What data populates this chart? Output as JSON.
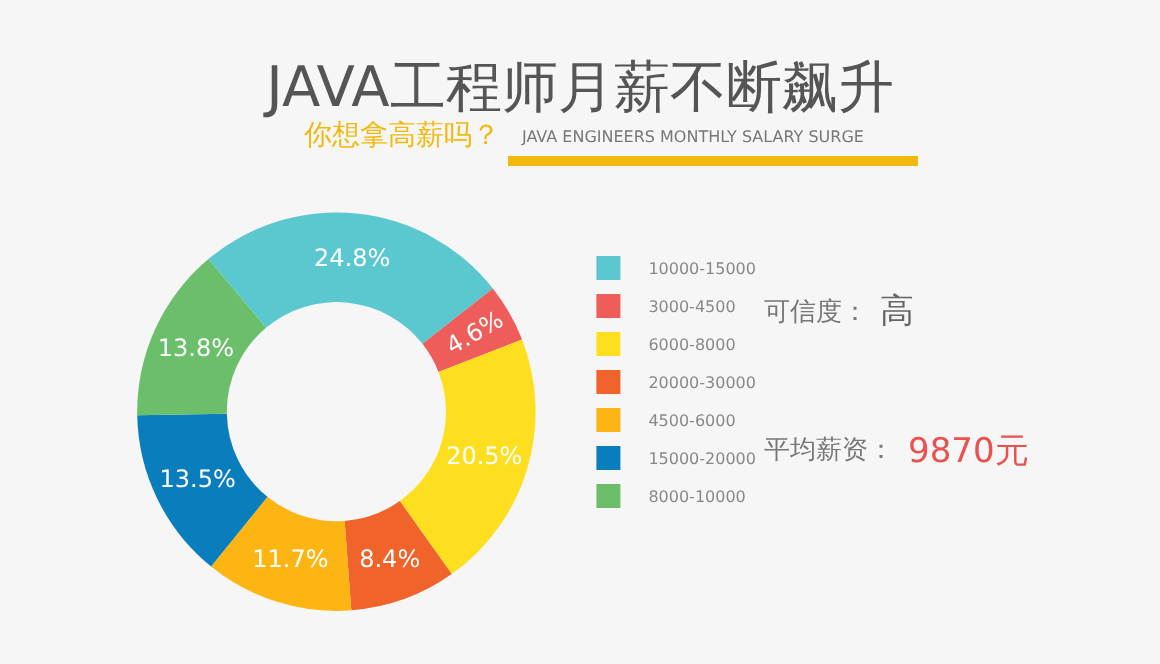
{
  "chart_data": {
    "type": "donut",
    "title": "JAVA工程师月薪不断飙升",
    "subtitle": "你想拿高薪吗？",
    "categories": [
      "10000-15000",
      "3000-4500",
      "6000-8000",
      "20000-30000",
      "4500-6000",
      "15000-20000",
      "8000-10000"
    ],
    "values": [
      24.8,
      4.6,
      20.5,
      8.4,
      11.7,
      13.5,
      13.8
    ],
    "value_labels": [
      "24.8%",
      "4.6%",
      "20.5%",
      "8.4%",
      "11.7%",
      "13.5%",
      "13.8%"
    ],
    "colors": [
      "#5bc8d0",
      "#ee5d5a",
      "#fddf1f",
      "#f0632a",
      "#fdb514",
      "#0a7dbd",
      "#6bbf6a"
    ],
    "legend": "right",
    "annotations": [
      "JAVA ENGINEERS MONTHLY SALARY SURGE",
      "可信度：",
      "高",
      "平均薪资：",
      "9870元"
    ]
  }
}
